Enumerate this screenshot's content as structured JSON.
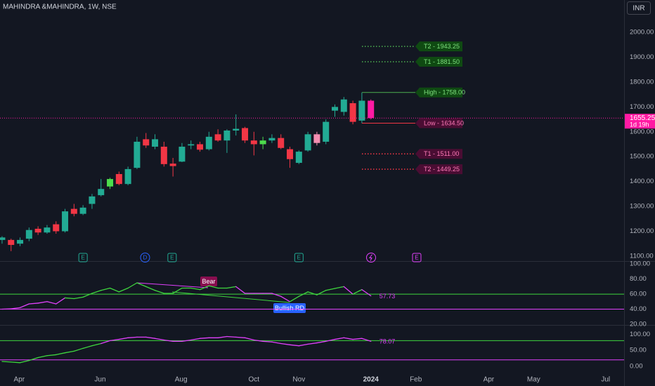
{
  "chart_data": [
    {
      "type": "candlestick",
      "title": "MAHINDRA &MAHINDRA, 1W, NSE",
      "currency": "INR",
      "x": [
        0,
        1,
        2,
        3,
        4,
        5,
        6,
        7,
        8,
        9,
        10,
        11,
        12,
        13,
        14,
        15,
        16,
        17,
        18,
        19,
        20,
        21,
        22,
        23,
        24,
        25,
        26,
        27,
        28,
        29,
        30,
        31,
        32,
        33,
        34,
        35,
        36,
        37,
        38,
        39,
        40,
        41
      ],
      "open": [
        1165,
        1165,
        1150,
        1170,
        1210,
        1195,
        1228,
        1200,
        1290,
        1270,
        1310,
        1345,
        1380,
        1430,
        1390,
        1455,
        1570,
        1540,
        1540,
        1472,
        1480,
        1545,
        1550,
        1530,
        1590,
        1565,
        1605,
        1615,
        1565,
        1550,
        1565,
        1575,
        1530,
        1475,
        1525,
        1590,
        1560,
        1685,
        1680,
        1715,
        1645,
        1725
      ],
      "high": [
        1180,
        1170,
        1175,
        1215,
        1220,
        1225,
        1240,
        1290,
        1310,
        1305,
        1350,
        1410,
        1415,
        1440,
        1460,
        1580,
        1595,
        1590,
        1560,
        1495,
        1555,
        1565,
        1560,
        1600,
        1610,
        1610,
        1670,
        1620,
        1600,
        1580,
        1590,
        1590,
        1540,
        1525,
        1600,
        1600,
        1650,
        1710,
        1740,
        1725,
        1758,
        1730
      ],
      "low": [
        1150,
        1120,
        1140,
        1160,
        1185,
        1190,
        1190,
        1195,
        1260,
        1265,
        1290,
        1340,
        1370,
        1385,
        1385,
        1450,
        1535,
        1530,
        1460,
        1420,
        1478,
        1530,
        1520,
        1525,
        1560,
        1515,
        1585,
        1555,
        1505,
        1530,
        1555,
        1530,
        1455,
        1470,
        1520,
        1545,
        1550,
        1660,
        1665,
        1630,
        1634.5,
        1650
      ],
      "close": [
        1175,
        1145,
        1165,
        1205,
        1195,
        1215,
        1200,
        1280,
        1270,
        1295,
        1340,
        1370,
        1410,
        1390,
        1450,
        1560,
        1545,
        1570,
        1470,
        1462,
        1540,
        1550,
        1528,
        1580,
        1565,
        1605,
        1612,
        1565,
        1550,
        1565,
        1575,
        1535,
        1490,
        1520,
        1590,
        1555,
        1640,
        1700,
        1730,
        1640,
        1725,
        1655.25
      ],
      "colors": [
        "#22ab94",
        "#f23645",
        "#22ab94",
        "#22ab94",
        "#f23645",
        "#22ab94",
        "#f23645",
        "#22ab94",
        "#f23645",
        "#22ab94",
        "#22ab94",
        "#22ab94",
        "#4cdc4c",
        "#f23645",
        "#22ab94",
        "#22ab94",
        "#f23645",
        "#22ab94",
        "#f23645",
        "#f23645",
        "#22ab94",
        "#22ab94",
        "#f23645",
        "#22ab94",
        "#f23645",
        "#22ab94",
        "#22ab94",
        "#f23645",
        "#f23645",
        "#4cdc4c",
        "#22ab94",
        "#f23645",
        "#f23645",
        "#22ab94",
        "#22ab94",
        "#f48fb1",
        "#22ab94",
        "#22ab94",
        "#22ab94",
        "#f23645",
        "#22ab94",
        "#ff1aa3"
      ],
      "xlim": [
        -0.23,
        69.15
      ],
      "xticks": [
        {
          "value": 1.9,
          "label": "Apr"
        },
        {
          "value": 10.9,
          "label": "Jun"
        },
        {
          "value": 19.9,
          "label": "Aug"
        },
        {
          "value": 28,
          "label": "Oct"
        },
        {
          "value": 33,
          "label": "Nov"
        },
        {
          "value": 41,
          "label": "2024"
        },
        {
          "value": 46,
          "label": "Feb"
        },
        {
          "value": 54.1,
          "label": "Apr"
        },
        {
          "value": 59.1,
          "label": "May"
        },
        {
          "value": 67.1,
          "label": "Jul"
        }
      ],
      "ylim": [
        1080,
        2130
      ],
      "yticks": [
        {
          "value": 1100,
          "label": "1100.00"
        },
        {
          "value": 1200,
          "label": "1200.00"
        },
        {
          "value": 1300,
          "label": "1300.00"
        },
        {
          "value": 1400,
          "label": "1400.00"
        },
        {
          "value": 1500,
          "label": "1500.00"
        },
        {
          "value": 1600,
          "label": "1600.00"
        },
        {
          "value": 1700,
          "label": "1700.00"
        },
        {
          "value": 1800,
          "label": "1800.00"
        },
        {
          "value": 1900,
          "label": "1900.00"
        },
        {
          "value": 2000,
          "label": "2000.00"
        }
      ],
      "levels": [
        {
          "label": "T2 - 1943.25",
          "value": 1943.25,
          "color": "#4caf50",
          "style": "dotted"
        },
        {
          "label": "T1 - 1881.50",
          "value": 1881.5,
          "color": "#4caf50",
          "style": "dotted"
        },
        {
          "label": "High - 1758.00",
          "value": 1758,
          "color": "#4caf50",
          "style": "solid"
        },
        {
          "label": "Low - 1634.50",
          "value": 1634.5,
          "color": "#f23645",
          "style": "solid"
        },
        {
          "label": "T1 - 1511.00",
          "value": 1511,
          "color": "#f23645",
          "style": "dotted"
        },
        {
          "label": "T2 - 1449.25",
          "value": 1449.25,
          "color": "#f23645",
          "style": "dotted"
        }
      ],
      "last_price": {
        "value": 1655.25,
        "label": "1655.25",
        "countdown": "1d 19h",
        "color": "#ff1aa3"
      },
      "events": [
        {
          "x": 9,
          "label": "E",
          "color": "#22ab94"
        },
        {
          "x": 15.9,
          "label": "D",
          "color": "#2962ff"
        },
        {
          "x": 18.9,
          "label": "E",
          "color": "#22ab94"
        },
        {
          "x": 33,
          "label": "E",
          "color": "#22ab94"
        },
        {
          "x": 46.1,
          "label": "E",
          "color": "#e040fb"
        }
      ]
    },
    {
      "type": "line",
      "values": [
        40,
        40.5,
        42,
        47,
        48,
        50,
        47,
        55,
        54,
        56,
        61,
        65,
        68,
        63,
        68,
        75,
        70,
        65,
        61,
        61,
        68,
        68,
        66,
        71,
        68,
        68,
        70,
        61,
        61,
        61,
        61,
        57,
        50,
        57,
        63,
        59,
        65,
        67.5,
        70,
        60,
        66,
        57.73
      ],
      "point_colors": [
        "#e040fb",
        "#e040fb",
        "#e040fb",
        "#e040fb",
        "#e040fb",
        "#e040fb",
        "#e040fb",
        "#3ed63e",
        "#3ed63e",
        "#3ed63e",
        "#3ed63e",
        "#3ed63e",
        "#3ed63e",
        "#3ed63e",
        "#3ed63e",
        "#3ed63e",
        "#3ed63e",
        "#3ed63e",
        "#3ed63e",
        "#3ed63e",
        "#3ed63e",
        "#3ed63e",
        "#3ed63e",
        "#3ed63e",
        "#3ed63e",
        "#3ed63e",
        "#e040fb",
        "#e040fb",
        "#e040fb",
        "#e040fb",
        "#e040fb",
        "#e040fb",
        "#3ed63e",
        "#3ed63e",
        "#3ed63e",
        "#3ed63e",
        "#3ed63e",
        "#3ed63e",
        "#e040fb",
        "#3ed63e",
        "#e040fb",
        "#e040fb"
      ],
      "value_label": "57.73",
      "ylim": [
        19,
        103
      ],
      "yticks": [
        {
          "value": 20,
          "label": "20.00"
        },
        {
          "value": 40,
          "label": "40.00"
        },
        {
          "value": 60,
          "label": "60.00"
        },
        {
          "value": 80,
          "label": "80.00"
        },
        {
          "value": 100,
          "label": "100.00"
        }
      ],
      "hlines": [
        {
          "value": 60,
          "color": "#3ed63e"
        },
        {
          "value": 40,
          "color": "#e040fb"
        }
      ],
      "annotations": [
        "Bear",
        "Bullish RD"
      ]
    },
    {
      "type": "line",
      "values": [
        15,
        13,
        11,
        18,
        27,
        33,
        36,
        42,
        47,
        56,
        64,
        71,
        80,
        84,
        89,
        91,
        91,
        87,
        82,
        78,
        78,
        82,
        87,
        89,
        89,
        93,
        91,
        89,
        82,
        78,
        76,
        71,
        67,
        64,
        69,
        73,
        78,
        84,
        89,
        84,
        87,
        78.07
      ],
      "point_colors": [
        "#3ed63e",
        "#3ed63e",
        "#3ed63e",
        "#3ed63e",
        "#3ed63e",
        "#3ed63e",
        "#3ed63e",
        "#3ed63e",
        "#3ed63e",
        "#3ed63e",
        "#3ed63e",
        "#e040fb",
        "#e040fb",
        "#e040fb",
        "#e040fb",
        "#e040fb",
        "#e040fb",
        "#e040fb",
        "#e040fb",
        "#e040fb",
        "#e040fb",
        "#e040fb",
        "#e040fb",
        "#e040fb",
        "#e040fb",
        "#e040fb",
        "#e040fb",
        "#e040fb",
        "#e040fb",
        "#e040fb",
        "#e040fb",
        "#e040fb",
        "#e040fb",
        "#e040fb",
        "#e040fb",
        "#e040fb",
        "#e040fb",
        "#e040fb",
        "#e040fb",
        "#e040fb",
        "#e040fb",
        "#e040fb"
      ],
      "value_label": "78.07",
      "ylim": [
        -29,
        127
      ],
      "yticks": [
        {
          "value": 0,
          "label": "0.00"
        },
        {
          "value": 50,
          "label": "50.00"
        },
        {
          "value": 100,
          "label": "100.00"
        }
      ],
      "hlines": [
        {
          "value": 80,
          "color": "#3ed63e"
        },
        {
          "value": 20,
          "color": "#e040fb"
        }
      ]
    }
  ]
}
